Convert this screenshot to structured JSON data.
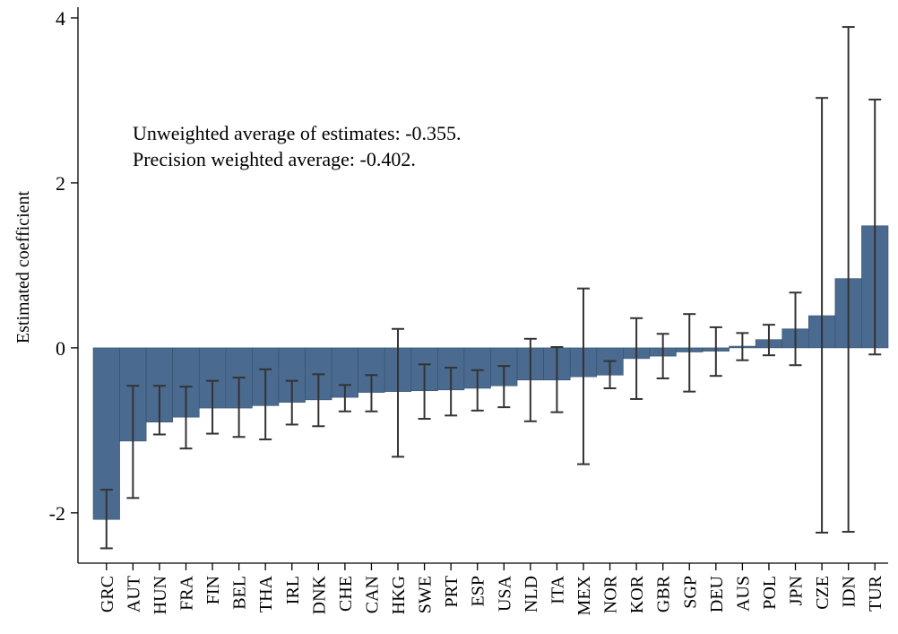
{
  "chart_data": {
    "type": "bar",
    "y_label": "Estimated coefficient",
    "annotations": [
      "Unweighted average of estimates: -0.355.",
      "Precision weighted average: -0.402."
    ],
    "categories": [
      "GRC",
      "AUT",
      "HUN",
      "FRA",
      "FIN",
      "BEL",
      "THA",
      "IRL",
      "DNK",
      "CHE",
      "CAN",
      "HKG",
      "SWE",
      "PRT",
      "ESP",
      "USA",
      "NLD",
      "ITA",
      "MEX",
      "NOR",
      "KOR",
      "GBR",
      "SGP",
      "DEU",
      "AUS",
      "POL",
      "JPN",
      "CZE",
      "IDN",
      "TUR"
    ],
    "values": [
      -2.08,
      -1.13,
      -0.9,
      -0.84,
      -0.73,
      -0.73,
      -0.7,
      -0.66,
      -0.63,
      -0.6,
      -0.54,
      -0.53,
      -0.52,
      -0.51,
      -0.49,
      -0.46,
      -0.39,
      -0.39,
      -0.35,
      -0.33,
      -0.13,
      -0.1,
      -0.05,
      -0.04,
      0.02,
      0.1,
      0.23,
      0.39,
      0.84,
      1.48
    ],
    "ci_low": [
      -2.43,
      -1.82,
      -1.05,
      -1.22,
      -1.04,
      -1.08,
      -1.11,
      -0.93,
      -0.95,
      -0.77,
      -0.77,
      -1.32,
      -0.86,
      -0.82,
      -0.76,
      -0.72,
      -0.89,
      -0.78,
      -1.41,
      -0.49,
      -0.62,
      -0.37,
      -0.53,
      -0.34,
      -0.15,
      -0.09,
      -0.21,
      -2.24,
      -2.23,
      -0.08
    ],
    "ci_high": [
      -1.72,
      -0.46,
      -0.46,
      -0.47,
      -0.4,
      -0.36,
      -0.26,
      -0.4,
      -0.32,
      -0.45,
      -0.33,
      0.23,
      -0.2,
      -0.24,
      -0.27,
      -0.22,
      0.11,
      0.01,
      0.72,
      -0.16,
      0.36,
      0.17,
      0.41,
      0.25,
      0.18,
      0.28,
      0.67,
      3.03,
      3.89,
      3.01
    ],
    "color": "#4a6a8f",
    "error_color": "#333333",
    "ylim": [
      -2.61,
      4.13
    ],
    "yticks": [
      -2,
      0,
      2,
      4
    ]
  }
}
